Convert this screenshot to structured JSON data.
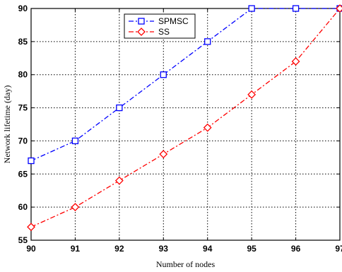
{
  "chart_data": {
    "type": "line",
    "xlabel": "Number of nodes",
    "ylabel": "Network lifetime (day)",
    "x": [
      90,
      91,
      92,
      93,
      94,
      95,
      96,
      97
    ],
    "xlim": [
      90,
      97
    ],
    "ylim": [
      55,
      90
    ],
    "xticks": [
      "90",
      "91",
      "92",
      "93",
      "94",
      "95",
      "96",
      "97"
    ],
    "yticks": [
      "55",
      "60",
      "65",
      "70",
      "75",
      "80",
      "85",
      "90"
    ],
    "grid": true,
    "legend_position": "top-center",
    "series": [
      {
        "name": "SPMSC",
        "values": [
          67,
          70,
          75,
          80,
          85,
          90,
          90,
          90
        ],
        "color": "#0000ff",
        "line_style": "dash-dot",
        "marker": "square"
      },
      {
        "name": "SS",
        "values": [
          57,
          60,
          64,
          68,
          72,
          77,
          82,
          90
        ],
        "color": "#ff0000",
        "line_style": "dash-dot",
        "marker": "diamond"
      }
    ]
  }
}
